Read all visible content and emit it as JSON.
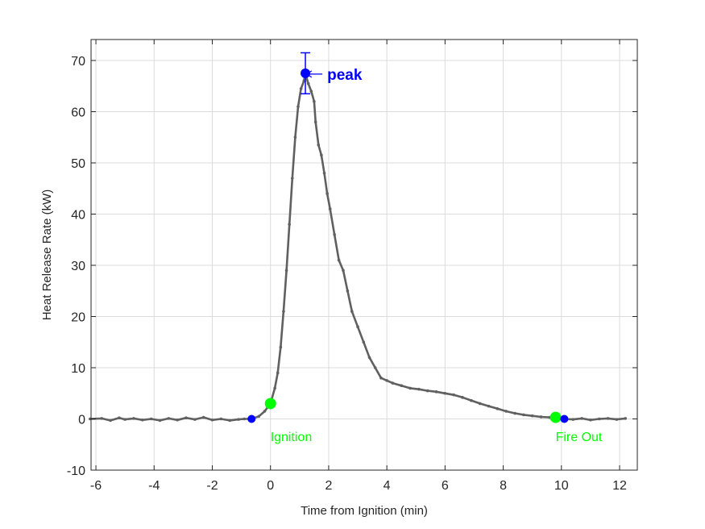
{
  "chart_data": {
    "type": "line",
    "title": "",
    "xlabel": "Time from Ignition (min)",
    "ylabel": "Heat Release Rate (kW)",
    "xlim": [
      -6.2,
      12.6
    ],
    "ylim": [
      -10,
      74
    ],
    "grid": true,
    "xticks": [
      -6,
      -4,
      -2,
      0,
      2,
      4,
      6,
      8,
      10,
      12
    ],
    "yticks": [
      -10,
      0,
      10,
      20,
      30,
      40,
      50,
      60,
      70
    ],
    "series": [
      {
        "name": "Heat Release Rate",
        "color": "#606060",
        "x": [
          -6.2,
          -5.8,
          -5.5,
          -5.2,
          -5.0,
          -4.7,
          -4.4,
          -4.1,
          -3.8,
          -3.5,
          -3.2,
          -2.9,
          -2.6,
          -2.3,
          -2.0,
          -1.7,
          -1.4,
          -1.1,
          -0.9,
          -0.65,
          -0.4,
          -0.2,
          0.0,
          0.15,
          0.25,
          0.35,
          0.45,
          0.55,
          0.65,
          0.75,
          0.85,
          0.95,
          1.05,
          1.15,
          1.2,
          1.3,
          1.4,
          1.5,
          1.55,
          1.65,
          1.75,
          1.85,
          1.95,
          2.05,
          2.2,
          2.35,
          2.5,
          2.65,
          2.8,
          3.0,
          3.2,
          3.4,
          3.6,
          3.8,
          4.0,
          4.2,
          4.5,
          4.8,
          5.1,
          5.4,
          5.7,
          6.0,
          6.3,
          6.6,
          6.9,
          7.2,
          7.5,
          7.8,
          8.1,
          8.4,
          8.7,
          9.0,
          9.3,
          9.6,
          9.8,
          10.1,
          10.4,
          10.7,
          11.0,
          11.3,
          11.6,
          11.9,
          12.2
        ],
        "y": [
          0.0,
          0.1,
          -0.3,
          0.2,
          -0.1,
          0.1,
          -0.2,
          0.0,
          -0.3,
          0.1,
          -0.2,
          0.2,
          -0.1,
          0.3,
          -0.2,
          0.0,
          -0.3,
          -0.1,
          0.0,
          0.0,
          0.5,
          1.5,
          3.0,
          6.0,
          9.0,
          14.0,
          21.0,
          29.0,
          38.0,
          47.0,
          55.0,
          61.0,
          64.5,
          66.0,
          67.5,
          65.5,
          64.0,
          62.0,
          58.0,
          53.5,
          51.5,
          48.0,
          44.0,
          41.0,
          36.0,
          31.0,
          29.0,
          25.0,
          21.0,
          18.0,
          15.0,
          12.0,
          10.0,
          8.0,
          7.5,
          7.0,
          6.5,
          6.0,
          5.8,
          5.5,
          5.3,
          5.0,
          4.7,
          4.2,
          3.6,
          3.0,
          2.5,
          2.0,
          1.5,
          1.1,
          0.8,
          0.6,
          0.4,
          0.3,
          0.3,
          0.0,
          -0.1,
          0.1,
          -0.2,
          0.0,
          0.1,
          -0.1,
          0.1
        ]
      }
    ],
    "markers": [
      {
        "name": "pre-ignition",
        "x": -0.65,
        "y": 0.0,
        "color": "#0000ff",
        "size": 5
      },
      {
        "name": "Ignition",
        "x": 0.0,
        "y": 3.0,
        "color": "#00ff00",
        "size": 7
      },
      {
        "name": "peak",
        "x": 1.2,
        "y": 67.5,
        "color": "#0000ff",
        "size": 6
      },
      {
        "name": "Fire Out",
        "x": 9.8,
        "y": 0.3,
        "color": "#00ff00",
        "size": 7
      },
      {
        "name": "post-fire",
        "x": 10.1,
        "y": 0.0,
        "color": "#0000ff",
        "size": 5
      }
    ],
    "errorbar": {
      "x": 1.2,
      "y": 67.5,
      "low": 63.5,
      "high": 71.5,
      "color": "#0000ff"
    },
    "annotations": [
      {
        "text": "Ignition",
        "x": 0.0,
        "y": -3.2,
        "color": "#00ff00"
      },
      {
        "text": "Fire Out",
        "x": 9.8,
        "y": -3.2,
        "color": "#00ff00"
      },
      {
        "text": "peak",
        "x": 1.95,
        "y": 67.5,
        "color": "#0000ff",
        "arrow_to": [
          1.25,
          67.5
        ]
      }
    ]
  }
}
